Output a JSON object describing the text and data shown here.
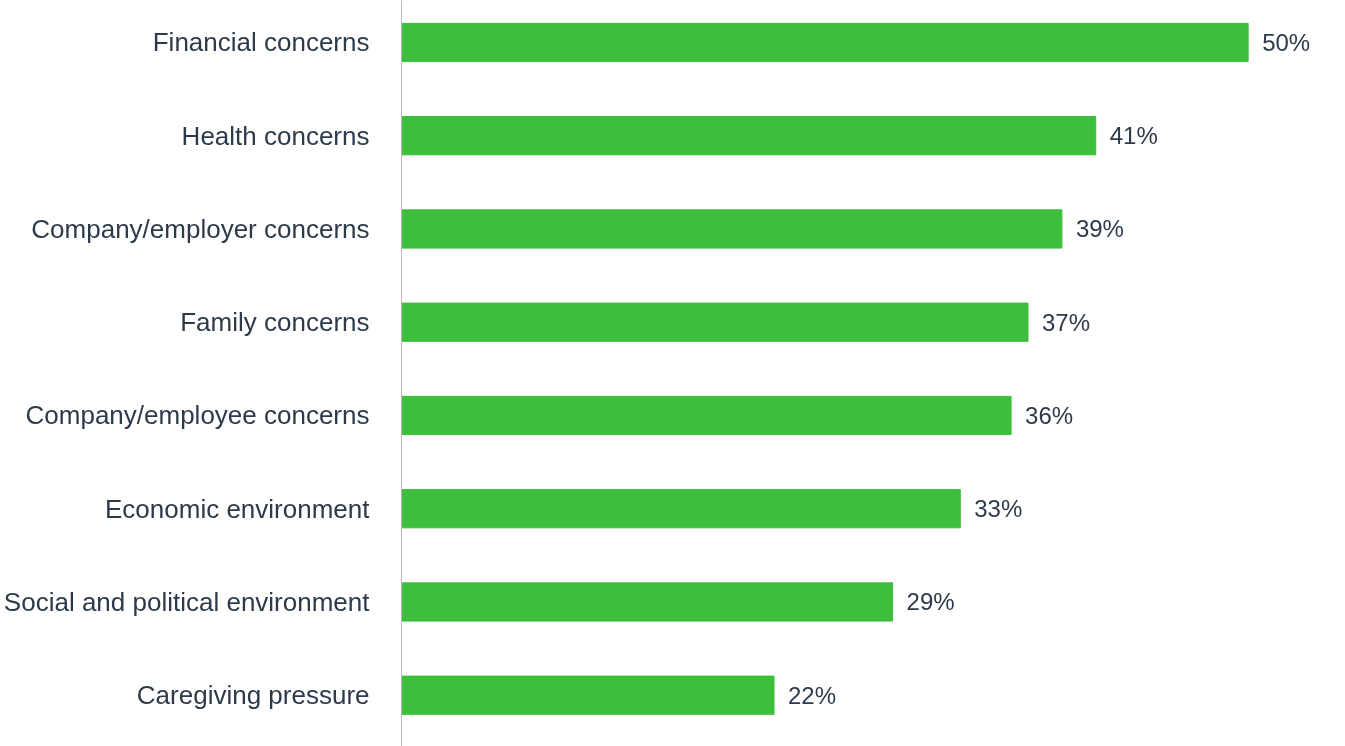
{
  "chart_data": {
    "type": "bar",
    "orientation": "horizontal",
    "categories": [
      "Financial concerns",
      "Health concerns",
      "Company/employer concerns",
      "Family concerns",
      "Company/employee concerns",
      "Economic environment",
      "Social and political environment",
      "Caregiving pressure"
    ],
    "values": [
      50,
      41,
      39,
      37,
      36,
      33,
      29,
      22
    ],
    "value_labels": [
      "50%",
      "41%",
      "39%",
      "37%",
      "36%",
      "33%",
      "29%",
      "22%"
    ],
    "color": "#3dbe3d"
  }
}
